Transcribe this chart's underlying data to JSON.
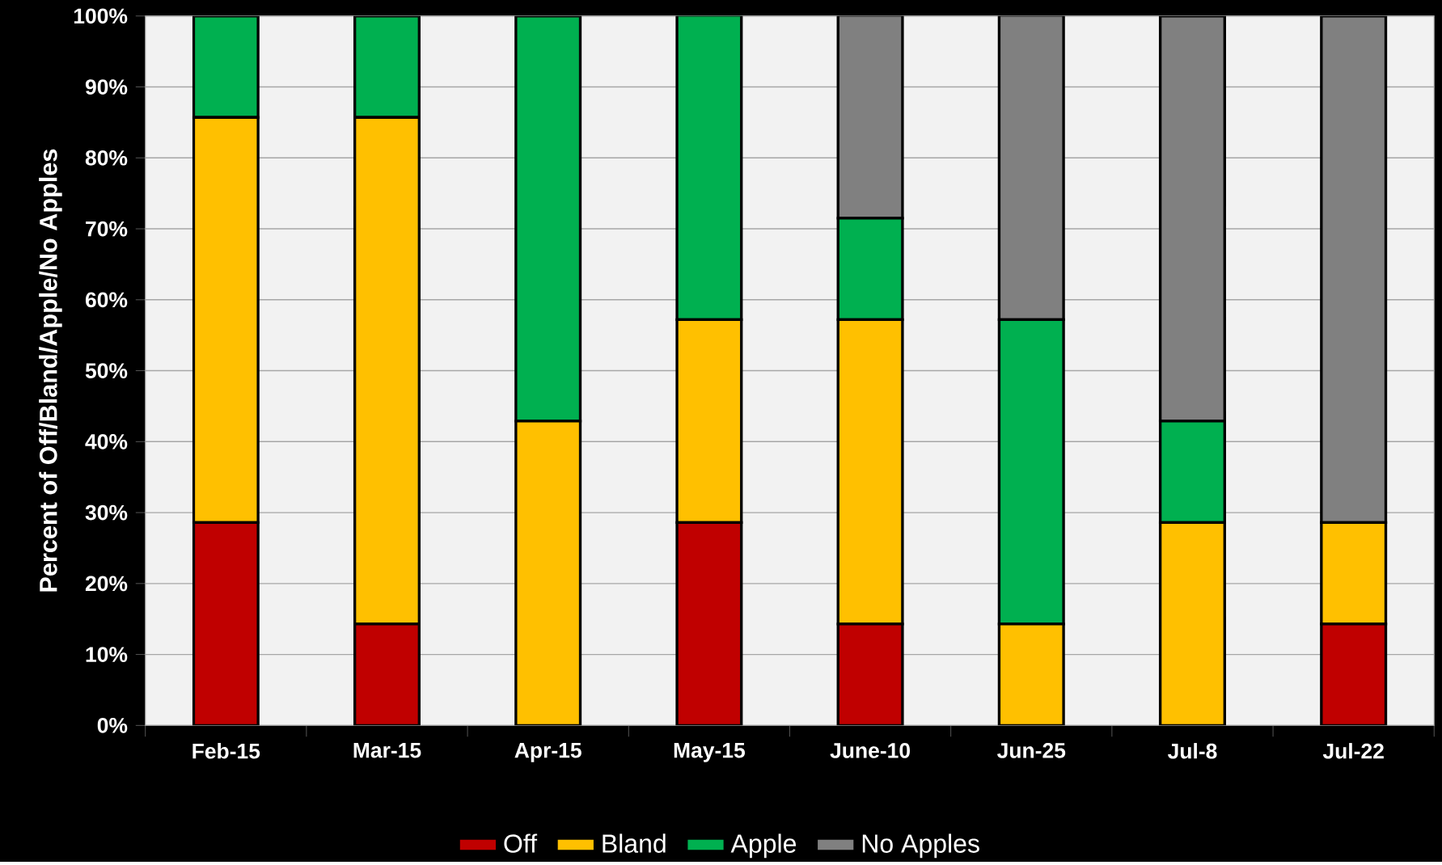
{
  "chart_data": {
    "type": "bar",
    "stacked": true,
    "ylabel": "Percent of Off/Bland/Apple/No Apples",
    "categories": [
      "Feb-15",
      "Mar-15",
      "Apr-15",
      "May-15",
      "June-10",
      "Jun-25",
      "Jul-8",
      "Jul-22"
    ],
    "series": [
      {
        "name": "Off",
        "color": "#c00000",
        "values": [
          28.6,
          14.3,
          0,
          28.6,
          14.3,
          0,
          0,
          14.3
        ]
      },
      {
        "name": "Bland",
        "color": "#ffc000",
        "values": [
          57.1,
          71.4,
          42.9,
          28.6,
          42.9,
          14.3,
          28.6,
          14.3
        ]
      },
      {
        "name": "Apple",
        "color": "#00b050",
        "values": [
          14.3,
          14.3,
          57.1,
          42.9,
          14.3,
          42.9,
          14.3,
          0
        ]
      },
      {
        "name": "No Apples",
        "color": "#808080",
        "values": [
          0,
          0,
          0,
          0,
          28.6,
          42.9,
          57.1,
          71.4
        ]
      }
    ],
    "ylim": [
      0,
      100
    ],
    "yticks": [
      {
        "value": 0,
        "label": "0%"
      },
      {
        "value": 10,
        "label": "10%"
      },
      {
        "value": 20,
        "label": "20%"
      },
      {
        "value": 30,
        "label": "30%"
      },
      {
        "value": 40,
        "label": "40%"
      },
      {
        "value": 50,
        "label": "50%"
      },
      {
        "value": 60,
        "label": "60%"
      },
      {
        "value": 70,
        "label": "70%"
      },
      {
        "value": 80,
        "label": "80%"
      },
      {
        "value": 90,
        "label": "90%"
      },
      {
        "value": 100,
        "label": "100%"
      }
    ],
    "grid": "y",
    "legend": "bottom"
  }
}
